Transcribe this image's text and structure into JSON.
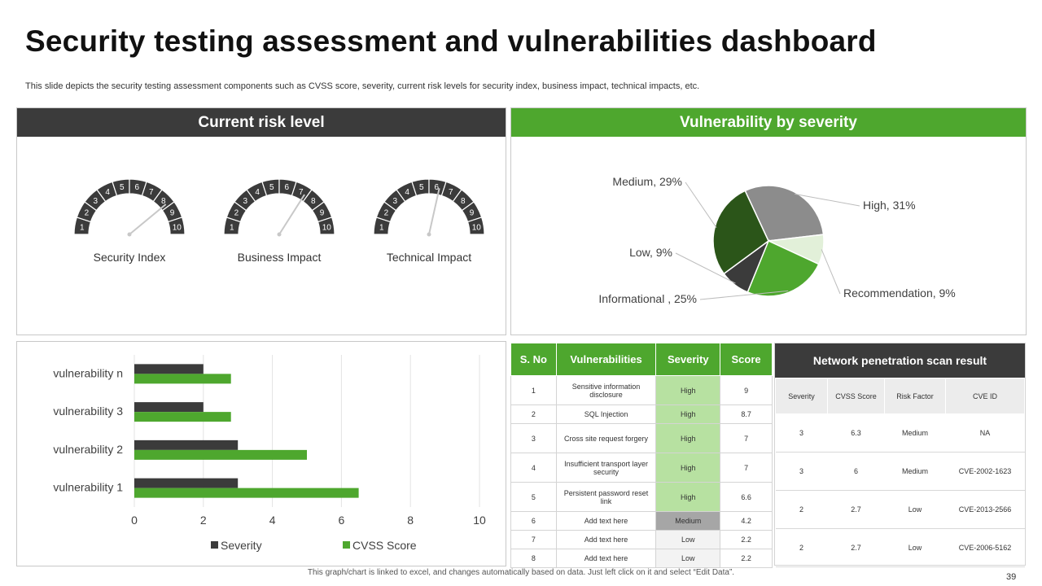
{
  "page": {
    "title": "Security testing assessment and vulnerabilities dashboard",
    "subtitle": "This slide depicts the security testing assessment components such as CVSS score, severity, current risk levels for security index, business impact, technical impacts, etc.",
    "footer_note": "This graph/chart is linked to excel, and changes automatically based on data. Just left click on it and select “Edit Data”.",
    "page_number": "39"
  },
  "colors": {
    "dark": "#3b3b3b",
    "green": "#4ea72e",
    "dark_green": "#2b5519",
    "gray": "#8c8c8c",
    "light_green": "#e2f0d9"
  },
  "risk": {
    "header": "Current risk level",
    "gauges": [
      {
        "label": "Security Index",
        "value": 8.3
      },
      {
        "label": "Business Impact",
        "value": 7.3
      },
      {
        "label": "Technical Impact",
        "value": 6.2
      }
    ],
    "ticks": [
      "1",
      "2",
      "3",
      "4",
      "5",
      "6",
      "7",
      "8",
      "9",
      "10"
    ]
  },
  "severity": {
    "header": "Vulnerability by severity"
  },
  "chart_data": [
    {
      "type": "pie",
      "title": "Vulnerability by severity",
      "slices": [
        {
          "name": "High",
          "value": 31,
          "label": "High, 31%",
          "color": "#8c8c8c"
        },
        {
          "name": "Recommendation",
          "value": 9,
          "label": "Recommendation, 9%",
          "color": "#e2f0d9"
        },
        {
          "name": "Informational",
          "value": 25,
          "label": "Informational , 25%",
          "color": "#4ea72e"
        },
        {
          "name": "Low",
          "value": 9,
          "label": "Low, 9%",
          "color": "#3b3b3b"
        },
        {
          "name": "Medium",
          "value": 29,
          "label": "Medium, 29%",
          "color": "#2b5519"
        }
      ]
    },
    {
      "type": "bar",
      "orientation": "horizontal",
      "categories": [
        "vulnerability 1",
        "vulnerability 2",
        "vulnerability 3",
        "vulnerability n"
      ],
      "series": [
        {
          "name": "Severity",
          "values": [
            3,
            3,
            2,
            2
          ],
          "color": "#3b3b3b"
        },
        {
          "name": "CVSS Score",
          "values": [
            6.5,
            5,
            2.8,
            2.8
          ],
          "color": "#4ea72e"
        }
      ],
      "xlim": [
        0,
        10
      ],
      "xticks": [
        "0",
        "2",
        "4",
        "6",
        "8",
        "10"
      ],
      "grid": true,
      "legend": "bottom"
    }
  ],
  "vuln_table": {
    "headers": [
      "S. No",
      "Vulnerabilities",
      "Severity",
      "Score"
    ],
    "rows": [
      {
        "no": "1",
        "name": "Sensitive information disclosure",
        "severity": "High",
        "score": "9"
      },
      {
        "no": "2",
        "name": "SQL Injection",
        "severity": "High",
        "score": "8.7"
      },
      {
        "no": "3",
        "name": "Cross site request forgery",
        "severity": "High",
        "score": "7"
      },
      {
        "no": "4",
        "name": "Insufficient transport layer security",
        "severity": "High",
        "score": "7"
      },
      {
        "no": "5",
        "name": "Persistent password reset link",
        "severity": "High",
        "score": "6.6"
      },
      {
        "no": "6",
        "name": "Add text here",
        "severity": "Medium",
        "score": "4.2"
      },
      {
        "no": "7",
        "name": "Add text here",
        "severity": "Low",
        "score": "2.2"
      },
      {
        "no": "8",
        "name": "Add text here",
        "severity": "Low",
        "score": "2.2"
      }
    ]
  },
  "net_table": {
    "title": "Network penetration scan result",
    "headers": [
      "Severity",
      "CVSS Score",
      "Risk Factor",
      "CVE ID"
    ],
    "rows": [
      {
        "severity": "3",
        "cvss": "6.3",
        "risk": "Medium",
        "cve": "NA"
      },
      {
        "severity": "3",
        "cvss": "6",
        "risk": "Medium",
        "cve": "CVE-2002-1623"
      },
      {
        "severity": "2",
        "cvss": "2.7",
        "risk": "Low",
        "cve": "CVE-2013-2566"
      },
      {
        "severity": "2",
        "cvss": "2.7",
        "risk": "Low",
        "cve": "CVE-2006-5162"
      }
    ]
  }
}
